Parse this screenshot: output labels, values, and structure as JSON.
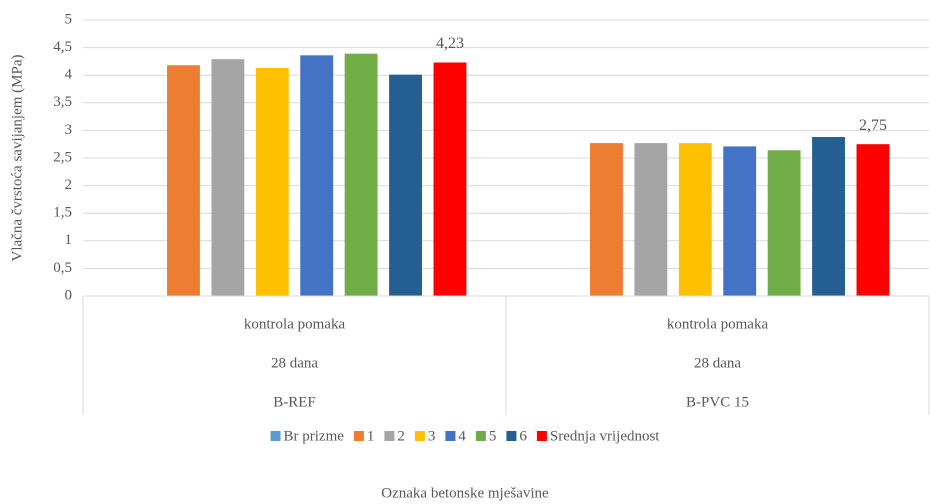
{
  "chart_data": {
    "type": "bar",
    "y_label": "Vlačna čvrstoća savijanjem (MPa)",
    "x_label": "Oznaka betonske mješavine",
    "categories": [
      [
        "kontrola pomaka",
        "28 dana",
        "B-REF"
      ],
      [
        "kontrola pomaka",
        "28 dana",
        "B-PVC 15"
      ]
    ],
    "series": [
      {
        "name": "Br prizme",
        "color": "#5b9bd5",
        "values": [
          null,
          null
        ]
      },
      {
        "name": "1",
        "color": "#ed7d31",
        "values": [
          4.18,
          2.77
        ]
      },
      {
        "name": "2",
        "color": "#a5a5a5",
        "values": [
          4.29,
          2.77
        ]
      },
      {
        "name": "3",
        "color": "#ffc000",
        "values": [
          4.13,
          2.77
        ]
      },
      {
        "name": "4",
        "color": "#4472c4",
        "values": [
          4.36,
          2.71
        ]
      },
      {
        "name": "5",
        "color": "#70ad47",
        "values": [
          4.39,
          2.64
        ]
      },
      {
        "name": "6",
        "color": "#255e91",
        "values": [
          4.01,
          2.88
        ]
      },
      {
        "name": "Srednja vrijednost",
        "color": "#ff0000",
        "values": [
          4.23,
          2.75
        ],
        "value_labels": [
          "4,23",
          "2,75"
        ]
      }
    ],
    "ylim": [
      0,
      5
    ],
    "yticks": [
      0,
      {
        "value": 0.5,
        "label": "0,5"
      },
      1,
      {
        "value": 1.5,
        "label": "1,5"
      },
      2,
      {
        "value": 2.5,
        "label": "2,5"
      },
      3,
      {
        "value": 3.5,
        "label": "3,5"
      },
      4,
      {
        "value": 4.5,
        "label": "4,5"
      },
      5
    ],
    "grid": true,
    "legend": "bottom"
  }
}
